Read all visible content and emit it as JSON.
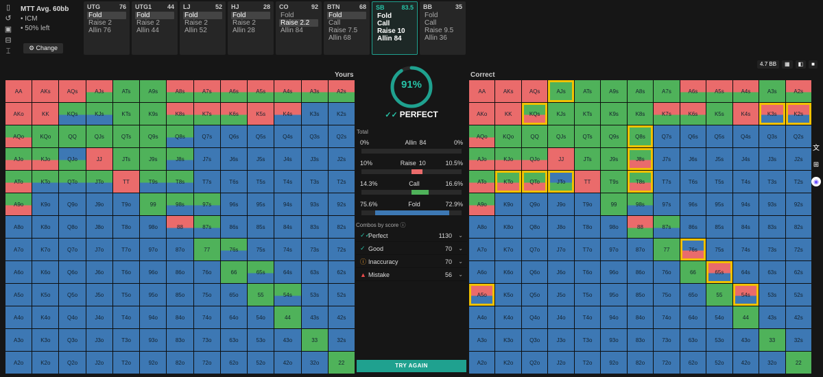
{
  "scenario": {
    "title": "MTT Avg. 60bb",
    "lines": [
      "• ICM",
      "• 50% left"
    ],
    "change_label": "Change",
    "left_icons": [
      "bookmark-icon",
      "history-icon",
      "save-icon",
      "train-icon",
      "text-cursor-icon"
    ]
  },
  "positions": [
    {
      "name": "UTG",
      "stack": "76",
      "actions": [
        {
          "label": "Fold",
          "state": "selected"
        },
        {
          "label": "Raise 2",
          "state": ""
        },
        {
          "label": "Allin 76",
          "state": ""
        }
      ]
    },
    {
      "name": "UTG1",
      "stack": "44",
      "actions": [
        {
          "label": "Fold",
          "state": "selected"
        },
        {
          "label": "Raise 2",
          "state": ""
        },
        {
          "label": "Allin 44",
          "state": ""
        }
      ]
    },
    {
      "name": "LJ",
      "stack": "52",
      "actions": [
        {
          "label": "Fold",
          "state": "selected"
        },
        {
          "label": "Raise 2",
          "state": ""
        },
        {
          "label": "Allin 52",
          "state": ""
        }
      ]
    },
    {
      "name": "HJ",
      "stack": "28",
      "actions": [
        {
          "label": "Fold",
          "state": "selected"
        },
        {
          "label": "Raise 2",
          "state": ""
        },
        {
          "label": "Allin 28",
          "state": ""
        }
      ]
    },
    {
      "name": "CO",
      "stack": "92",
      "actions": [
        {
          "label": "Fold",
          "state": ""
        },
        {
          "label": "Raise 2.2",
          "state": "selected"
        },
        {
          "label": "Allin 84",
          "state": ""
        }
      ]
    },
    {
      "name": "BTN",
      "stack": "68",
      "actions": [
        {
          "label": "Fold",
          "state": "selected"
        },
        {
          "label": "Call",
          "state": ""
        },
        {
          "label": "Raise 7.5",
          "state": ""
        },
        {
          "label": "Allin 68",
          "state": ""
        }
      ]
    },
    {
      "name": "SB",
      "stack": "83.5",
      "active": true,
      "actions": [
        {
          "label": "Fold",
          "state": "bold"
        },
        {
          "label": "Call",
          "state": "bold"
        },
        {
          "label": "Raise 10",
          "state": "bold"
        },
        {
          "label": "Allin 84",
          "state": "bold"
        }
      ]
    },
    {
      "name": "BB",
      "stack": "35",
      "actions": [
        {
          "label": "Fold",
          "state": ""
        },
        {
          "label": "Call",
          "state": ""
        },
        {
          "label": "Raise 9.5",
          "state": ""
        },
        {
          "label": "Allin 36",
          "state": ""
        }
      ]
    }
  ],
  "toolbar": {
    "pot": "4.7 BB",
    "icons": [
      "grid-view-icon",
      "split-view-icon",
      "square-view-icon"
    ]
  },
  "labels": {
    "yours": "Yours",
    "correct": "Correct"
  },
  "score": {
    "percent": "91%",
    "value": 0.91,
    "rating": "PERFECT"
  },
  "total": {
    "label": "Total",
    "rows": [
      {
        "name": "Allin",
        "size": "84",
        "yours": "0%",
        "correct": "0%",
        "bar": []
      },
      {
        "name": "Raise",
        "size": "10",
        "yours": "10%",
        "correct": "10.5%",
        "bar": [
          {
            "color": "#ea6b6b",
            "from": 0.5,
            "to": 0.61
          }
        ]
      },
      {
        "name": "Call",
        "size": "",
        "yours": "14.3%",
        "correct": "16.6%",
        "bar": [
          {
            "color": "#4fb25a",
            "from": 0.5,
            "to": 0.67
          }
        ]
      },
      {
        "name": "Fold",
        "size": "",
        "yours": "75.6%",
        "correct": "72.9%",
        "bar": [
          {
            "color": "#3d78b4",
            "from": 0.14,
            "to": 0.88
          }
        ]
      }
    ]
  },
  "combos": {
    "label": "Combos by score ⓘ",
    "rows": [
      {
        "name": "Perfect",
        "count": "1130",
        "icon": "double-check-icon",
        "color": "#27c2a7",
        "glyph": "✓✓"
      },
      {
        "name": "Good",
        "count": "70",
        "icon": "check-icon",
        "color": "#27c2a7",
        "glyph": "✓"
      },
      {
        "name": "Inaccuracy",
        "count": "70",
        "icon": "warning-circle-icon",
        "color": "#f0a030",
        "glyph": "ⓘ"
      },
      {
        "name": "Mistake",
        "count": "56",
        "icon": "warning-triangle-icon",
        "color": "#ea4b4b",
        "glyph": "▲"
      }
    ]
  },
  "try_again": "TRY AGAIN",
  "colors": {
    "raise": "#ea6b6b",
    "call": "#4fb25a",
    "fold": "#3d78b4",
    "accent": "#27c2a7",
    "highlight": "#f2c200"
  },
  "hands": [
    [
      "AA",
      "AKs",
      "AQs",
      "AJs",
      "ATs",
      "A9s",
      "A8s",
      "A7s",
      "A6s",
      "A5s",
      "A4s",
      "A3s",
      "A2s"
    ],
    [
      "AKo",
      "KK",
      "KQs",
      "KJs",
      "KTs",
      "K9s",
      "K8s",
      "K7s",
      "K6s",
      "K5s",
      "K4s",
      "K3s",
      "K2s"
    ],
    [
      "AQo",
      "KQo",
      "QQ",
      "QJs",
      "QTs",
      "Q9s",
      "Q8s",
      "Q7s",
      "Q6s",
      "Q5s",
      "Q4s",
      "Q3s",
      "Q2s"
    ],
    [
      "AJo",
      "KJo",
      "QJo",
      "JJ",
      "JTs",
      "J9s",
      "J8s",
      "J7s",
      "J6s",
      "J5s",
      "J4s",
      "J3s",
      "J2s"
    ],
    [
      "ATo",
      "KTo",
      "QTo",
      "JTo",
      "TT",
      "T9s",
      "T8s",
      "T7s",
      "T6s",
      "T5s",
      "T4s",
      "T3s",
      "T2s"
    ],
    [
      "A9o",
      "K9o",
      "Q9o",
      "J9o",
      "T9o",
      "99",
      "98s",
      "97s",
      "96s",
      "95s",
      "94s",
      "93s",
      "92s"
    ],
    [
      "A8o",
      "K8o",
      "Q8o",
      "J8o",
      "T8o",
      "98o",
      "88",
      "87s",
      "86s",
      "85s",
      "84s",
      "83s",
      "82s"
    ],
    [
      "A7o",
      "K7o",
      "Q7o",
      "J7o",
      "T7o",
      "97o",
      "87o",
      "77",
      "76s",
      "75s",
      "74s",
      "73s",
      "72s"
    ],
    [
      "A6o",
      "K6o",
      "Q6o",
      "J6o",
      "T6o",
      "96o",
      "86o",
      "76o",
      "66",
      "65s",
      "64s",
      "63s",
      "62s"
    ],
    [
      "A5o",
      "K5o",
      "Q5o",
      "J5o",
      "T5o",
      "95o",
      "85o",
      "75o",
      "65o",
      "55",
      "54s",
      "53s",
      "52s"
    ],
    [
      "A4o",
      "K4o",
      "Q4o",
      "J4o",
      "T4o",
      "94o",
      "84o",
      "74o",
      "64o",
      "54o",
      "44",
      "43s",
      "42s"
    ],
    [
      "A3o",
      "K3o",
      "Q3o",
      "J3o",
      "T3o",
      "93o",
      "83o",
      "73o",
      "63o",
      "53o",
      "43o",
      "33",
      "32s"
    ],
    [
      "A2o",
      "K2o",
      "Q2o",
      "J2o",
      "T2o",
      "92o",
      "82o",
      "72o",
      "62o",
      "52o",
      "42o",
      "32o",
      "22"
    ]
  ],
  "yours_grid": [
    [
      "R",
      "R",
      "R",
      "RG",
      "G",
      "G",
      "RG",
      "RG",
      "RG",
      "RG",
      "RG",
      "RG",
      "RG"
    ],
    [
      "R",
      "R",
      "GB",
      "GB",
      "G",
      "G",
      "RG",
      "RG",
      "RG",
      "R",
      "RB",
      "B",
      "B"
    ],
    [
      "GR",
      "G",
      "G",
      "G",
      "G",
      "G",
      "GB",
      "B",
      "B",
      "B",
      "B",
      "B",
      "B"
    ],
    [
      "GR",
      "GR",
      "BG",
      "R",
      "G",
      "G",
      "GB",
      "B",
      "B",
      "B",
      "B",
      "B",
      "B"
    ],
    [
      "GR",
      "GB",
      "GB",
      "GB",
      "R",
      "GB",
      "GB",
      "B",
      "B",
      "B",
      "B",
      "B",
      "B"
    ],
    [
      "GR",
      "B",
      "B",
      "B",
      "B",
      "G",
      "GB",
      "GB",
      "B",
      "B",
      "B",
      "B",
      "B"
    ],
    [
      "B",
      "B",
      "B",
      "B",
      "B",
      "B",
      "RB",
      "GB",
      "B",
      "B",
      "B",
      "B",
      "B"
    ],
    [
      "B",
      "B",
      "B",
      "B",
      "B",
      "B",
      "B",
      "G",
      "GB",
      "B",
      "B",
      "B",
      "B"
    ],
    [
      "B",
      "B",
      "B",
      "B",
      "B",
      "B",
      "B",
      "B",
      "G",
      "GB",
      "B",
      "B",
      "B"
    ],
    [
      "B",
      "B",
      "B",
      "B",
      "B",
      "B",
      "B",
      "B",
      "B",
      "G",
      "GB",
      "B",
      "B"
    ],
    [
      "B",
      "B",
      "B",
      "B",
      "B",
      "B",
      "B",
      "B",
      "B",
      "B",
      "G",
      "B",
      "B"
    ],
    [
      "B",
      "B",
      "B",
      "B",
      "B",
      "B",
      "B",
      "B",
      "B",
      "B",
      "B",
      "G",
      "B"
    ],
    [
      "B",
      "B",
      "B",
      "B",
      "B",
      "B",
      "B",
      "B",
      "B",
      "B",
      "B",
      "B",
      "G"
    ]
  ],
  "correct_grid": [
    [
      "R",
      "R",
      "R",
      "G",
      "G",
      "G",
      "G",
      "G",
      "RG",
      "RG",
      "RG",
      "G",
      "RG"
    ],
    [
      "R",
      "R",
      "GR",
      "G",
      "G",
      "G",
      "G",
      "RG",
      "RG",
      "G",
      "R",
      "RB",
      "RB"
    ],
    [
      "GR",
      "G",
      "G",
      "G",
      "G",
      "G",
      "G",
      "B",
      "B",
      "B",
      "B",
      "B",
      "B"
    ],
    [
      "GR",
      "GR",
      "GR",
      "R",
      "G",
      "G",
      "GR",
      "B",
      "B",
      "B",
      "B",
      "B",
      "B"
    ],
    [
      "GR",
      "GR",
      "GR",
      "BG",
      "R",
      "G",
      "GR",
      "B",
      "B",
      "B",
      "B",
      "B",
      "B"
    ],
    [
      "GR",
      "B",
      "B",
      "B",
      "B",
      "G",
      "GB",
      "B",
      "B",
      "B",
      "B",
      "B",
      "B"
    ],
    [
      "B",
      "B",
      "B",
      "B",
      "B",
      "B",
      "RG",
      "GB",
      "B",
      "B",
      "B",
      "B",
      "B"
    ],
    [
      "B",
      "B",
      "B",
      "B",
      "B",
      "B",
      "B",
      "G",
      "BR",
      "B",
      "B",
      "B",
      "B"
    ],
    [
      "B",
      "B",
      "B",
      "B",
      "B",
      "B",
      "B",
      "B",
      "G",
      "RB",
      "B",
      "B",
      "B"
    ],
    [
      "RB",
      "B",
      "B",
      "B",
      "B",
      "B",
      "B",
      "B",
      "B",
      "G",
      "RB",
      "B",
      "B"
    ],
    [
      "B",
      "B",
      "B",
      "B",
      "B",
      "B",
      "B",
      "B",
      "B",
      "B",
      "G",
      "B",
      "B"
    ],
    [
      "B",
      "B",
      "B",
      "B",
      "B",
      "B",
      "B",
      "B",
      "B",
      "B",
      "B",
      "G",
      "B"
    ],
    [
      "B",
      "B",
      "B",
      "B",
      "B",
      "B",
      "B",
      "B",
      "B",
      "B",
      "B",
      "B",
      "G"
    ]
  ],
  "highlights": [
    "AJs",
    "KQs",
    "K3s",
    "K2s",
    "Q8s",
    "J8s",
    "T8s",
    "KTo",
    "QTo",
    "JTo",
    "76s",
    "65s",
    "54s",
    "A5o"
  ]
}
